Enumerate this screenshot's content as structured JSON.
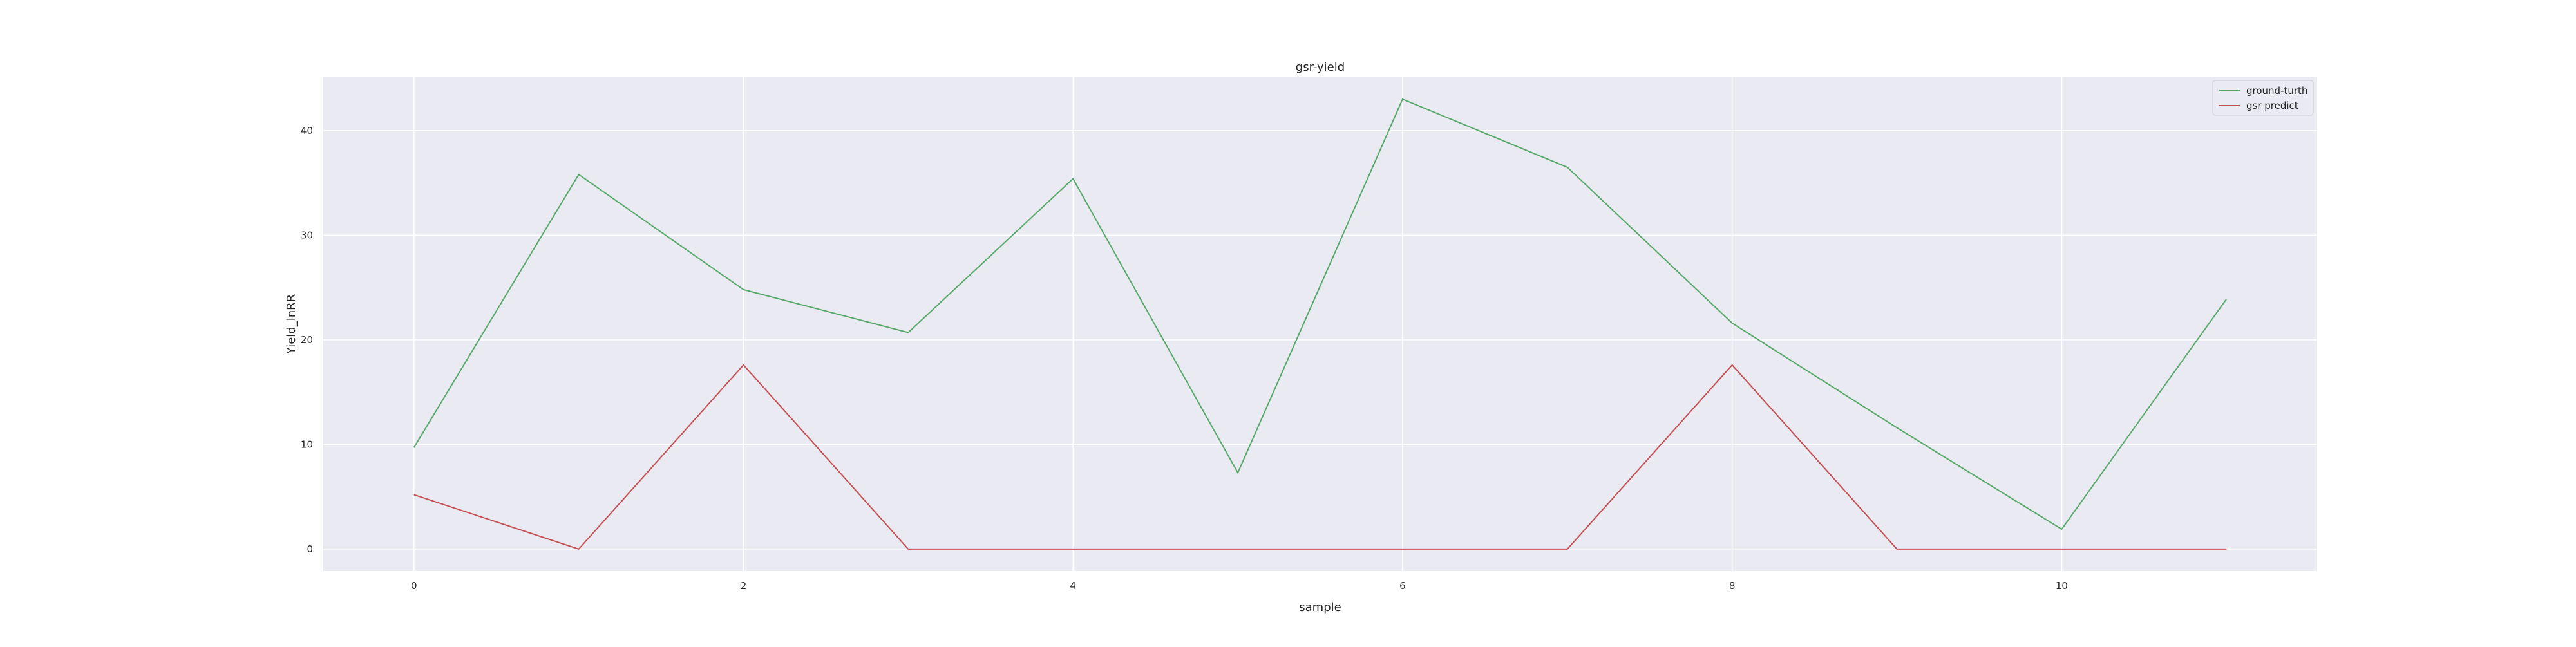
{
  "chart_data": {
    "type": "line",
    "title": "gsr-yield",
    "xlabel": "sample",
    "ylabel": "Yield_lnRR",
    "x": [
      0,
      1,
      2,
      3,
      4,
      5,
      6,
      7,
      8,
      9,
      10,
      11
    ],
    "xticks": [
      0,
      2,
      4,
      6,
      8,
      10
    ],
    "yticks": [
      0,
      10,
      20,
      30,
      40
    ],
    "xlim": [
      -0.55,
      11.55
    ],
    "ylim": [
      -2.1,
      45.1
    ],
    "grid": true,
    "legend_position": "top-right",
    "background_color": "#eaeaf2",
    "grid_color": "#ffffff",
    "series": [
      {
        "name": "ground-turth",
        "color": "#55a868",
        "values": [
          9.7,
          35.8,
          24.8,
          20.7,
          35.4,
          7.3,
          43.0,
          36.5,
          21.6,
          11.6,
          1.9,
          23.9
        ]
      },
      {
        "name": "gsr predict",
        "color": "#c44e52",
        "values": [
          5.2,
          0.0,
          17.6,
          0.0,
          0.0,
          0.0,
          0.0,
          0.0,
          17.6,
          0.0,
          0.0,
          0.0
        ]
      }
    ]
  }
}
